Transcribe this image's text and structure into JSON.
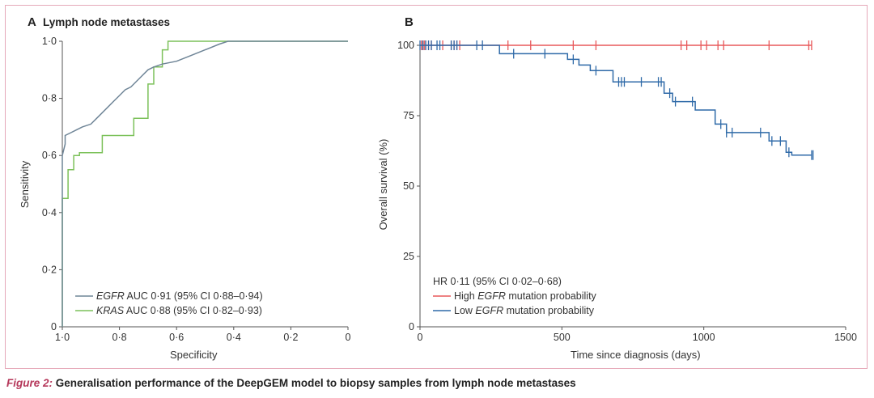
{
  "caption": {
    "figure_label": "Figure 2:",
    "text": "Generalisation performance of the DeepGEM model to biopsy samples from lymph node metastases"
  },
  "chart_data": [
    {
      "panel": "A",
      "type": "line",
      "title": "Lymph node metastases",
      "xlabel": "Specificity",
      "ylabel": "Sensitivity",
      "xlim": [
        1.0,
        0.0
      ],
      "ylim": [
        0.0,
        1.0
      ],
      "xticks": [
        "1·0",
        "0·8",
        "0·6",
        "0·4",
        "0·2",
        "0"
      ],
      "xtick_values": [
        1.0,
        0.8,
        0.6,
        0.4,
        0.2,
        0.0
      ],
      "yticks": [
        "0",
        "0·2",
        "0·4",
        "0·6",
        "0·8",
        "1·0"
      ],
      "ytick_values": [
        0,
        0.2,
        0.4,
        0.6,
        0.8,
        1.0
      ],
      "legend_position": "bottom-left",
      "series": [
        {
          "name": "EGFR",
          "label_rest": " AUC 0·91 (95% CI 0·88–0·94)",
          "color": "#6f8597",
          "points": [
            [
              1.0,
              0
            ],
            [
              1.0,
              0.6
            ],
            [
              0.99,
              0.64
            ],
            [
              0.99,
              0.67
            ],
            [
              0.97,
              0.68
            ],
            [
              0.95,
              0.69
            ],
            [
              0.93,
              0.7
            ],
            [
              0.9,
              0.71
            ],
            [
              0.88,
              0.73
            ],
            [
              0.86,
              0.75
            ],
            [
              0.84,
              0.77
            ],
            [
              0.82,
              0.79
            ],
            [
              0.8,
              0.81
            ],
            [
              0.78,
              0.83
            ],
            [
              0.76,
              0.84
            ],
            [
              0.74,
              0.86
            ],
            [
              0.72,
              0.88
            ],
            [
              0.7,
              0.9
            ],
            [
              0.68,
              0.91
            ],
            [
              0.65,
              0.92
            ],
            [
              0.6,
              0.93
            ],
            [
              0.55,
              0.95
            ],
            [
              0.5,
              0.97
            ],
            [
              0.45,
              0.99
            ],
            [
              0.42,
              1.0
            ],
            [
              0.0,
              1.0
            ]
          ]
        },
        {
          "name": "KRAS",
          "label_rest": " AUC 0·88 (95% CI 0·82–0·93)",
          "color": "#7cc15a",
          "points": [
            [
              1.0,
              0
            ],
            [
              1.0,
              0.45
            ],
            [
              0.98,
              0.45
            ],
            [
              0.98,
              0.55
            ],
            [
              0.96,
              0.55
            ],
            [
              0.96,
              0.6
            ],
            [
              0.94,
              0.6
            ],
            [
              0.94,
              0.61
            ],
            [
              0.86,
              0.61
            ],
            [
              0.86,
              0.67
            ],
            [
              0.75,
              0.67
            ],
            [
              0.75,
              0.73
            ],
            [
              0.7,
              0.73
            ],
            [
              0.7,
              0.85
            ],
            [
              0.68,
              0.85
            ],
            [
              0.68,
              0.91
            ],
            [
              0.65,
              0.91
            ],
            [
              0.65,
              0.97
            ],
            [
              0.63,
              0.97
            ],
            [
              0.63,
              1.0
            ],
            [
              0.0,
              1.0
            ]
          ]
        }
      ]
    },
    {
      "panel": "B",
      "type": "line",
      "title": "",
      "xlabel": "Time since diagnosis (days)",
      "ylabel": "Overall survival (%)",
      "xlim": [
        0,
        1500
      ],
      "ylim": [
        0,
        100
      ],
      "xticks": [
        "0",
        "500",
        "1000",
        "1500"
      ],
      "xtick_values": [
        0,
        500,
        1000,
        1500
      ],
      "yticks": [
        "0",
        "25",
        "50",
        "75",
        "100"
      ],
      "ytick_values": [
        0,
        25,
        50,
        75,
        100
      ],
      "legend_position": "bottom-left",
      "annotation": "HR 0·11 (95% CI 0·02–0·68)",
      "series": [
        {
          "name": "High EGFR mutation probability",
          "label_pre": "High ",
          "label_em": "EGFR",
          "label_post": " mutation probability",
          "color": "#e8585a",
          "steps": [
            [
              0,
              100
            ],
            [
              1380,
              100
            ]
          ],
          "censor": [
            5,
            10,
            15,
            20,
            30,
            40,
            80,
            110,
            120,
            130,
            140,
            310,
            390,
            540,
            620,
            920,
            940,
            990,
            1010,
            1050,
            1070,
            1230,
            1370,
            1380
          ]
        },
        {
          "name": "Low EGFR mutation probability",
          "label_pre": "Low ",
          "label_em": "EGFR",
          "label_post": " mutation probability",
          "color": "#2f6aa8",
          "steps": [
            [
              0,
              100
            ],
            [
              280,
              100
            ],
            [
              280,
              97
            ],
            [
              520,
              97
            ],
            [
              520,
              95
            ],
            [
              560,
              95
            ],
            [
              560,
              93
            ],
            [
              600,
              93
            ],
            [
              600,
              91
            ],
            [
              680,
              91
            ],
            [
              680,
              87
            ],
            [
              860,
              87
            ],
            [
              860,
              83
            ],
            [
              890,
              83
            ],
            [
              890,
              80
            ],
            [
              970,
              80
            ],
            [
              970,
              77
            ],
            [
              1040,
              77
            ],
            [
              1040,
              72
            ],
            [
              1080,
              72
            ],
            [
              1080,
              69
            ],
            [
              1230,
              69
            ],
            [
              1230,
              66
            ],
            [
              1290,
              66
            ],
            [
              1290,
              62
            ],
            [
              1310,
              62
            ],
            [
              1310,
              61
            ],
            [
              1380,
              61
            ]
          ],
          "censor": [
            0,
            10,
            20,
            30,
            40,
            60,
            70,
            110,
            120,
            130,
            200,
            220,
            330,
            440,
            540,
            620,
            700,
            710,
            720,
            780,
            840,
            850,
            880,
            900,
            960,
            1060,
            1080,
            1100,
            1200,
            1240,
            1270,
            1300,
            1380,
            1385
          ]
        }
      ]
    }
  ]
}
